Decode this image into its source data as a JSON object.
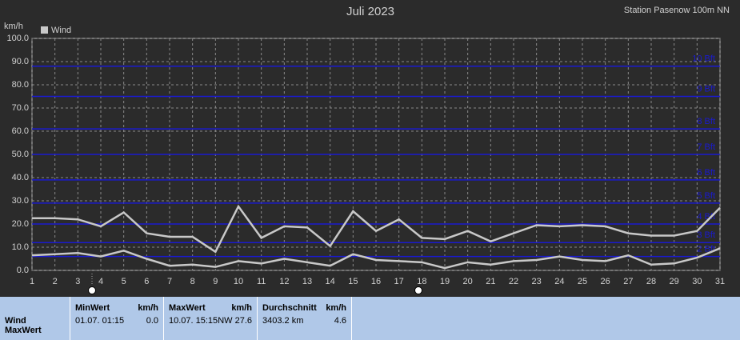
{
  "chart_data": {
    "type": "line",
    "title": "Juli 2023",
    "subtitle": "Station Pasenow 100m NN",
    "y_label": "km/h",
    "x": [
      1,
      2,
      3,
      4,
      5,
      6,
      7,
      8,
      9,
      10,
      11,
      12,
      13,
      14,
      15,
      16,
      17,
      18,
      19,
      20,
      21,
      22,
      23,
      24,
      25,
      26,
      27,
      28,
      29,
      30,
      31
    ],
    "series": [
      {
        "color": "#c8c8c8",
        "values": [
          22.5,
          22.5,
          22,
          19,
          25,
          16,
          14.5,
          14.5,
          8,
          27.6,
          14,
          19,
          18.5,
          10.5,
          25.5,
          17,
          22,
          14,
          13.5,
          17,
          12.5,
          16,
          19.5,
          19,
          19.5,
          19,
          16,
          15,
          15,
          17,
          27
        ]
      },
      {
        "name": "Wind",
        "color": "#c8c8c8",
        "values": [
          6.5,
          7,
          7.5,
          6,
          8.5,
          5,
          2,
          2.5,
          1.5,
          4,
          3,
          5,
          3.5,
          2,
          7,
          4.5,
          4,
          3.5,
          1,
          3.5,
          2.5,
          4,
          4.5,
          6,
          4.5,
          4,
          6.5,
          2.5,
          3,
          5.5,
          9.5
        ]
      }
    ],
    "xlim": [
      1,
      31
    ],
    "xticks": [
      1,
      2,
      3,
      4,
      5,
      6,
      7,
      8,
      9,
      10,
      11,
      12,
      13,
      14,
      15,
      16,
      17,
      18,
      19,
      20,
      21,
      22,
      23,
      24,
      25,
      26,
      27,
      28,
      29,
      30,
      31
    ],
    "ylim": [
      0,
      100
    ],
    "yticks": [
      {
        "value": 0,
        "label": "0.0"
      },
      {
        "value": 10,
        "label": "10.0"
      },
      {
        "value": 20,
        "label": "20.0"
      },
      {
        "value": 30,
        "label": "30.0"
      },
      {
        "value": 40,
        "label": "40.0"
      },
      {
        "value": 50,
        "label": "50.0"
      },
      {
        "value": 60,
        "label": "60.0"
      },
      {
        "value": 70,
        "label": "70.0"
      },
      {
        "value": 80,
        "label": "80.0"
      },
      {
        "value": 90,
        "label": "90.0"
      },
      {
        "value": 100,
        "label": "100.0"
      }
    ],
    "bft_lines": [
      {
        "value": 88,
        "label": "10 Bft"
      },
      {
        "value": 75,
        "label": "9 Bft"
      },
      {
        "value": 61,
        "label": "8 Bft"
      },
      {
        "value": 50,
        "label": "7 Bft"
      },
      {
        "value": 39,
        "label": "6 Bft"
      },
      {
        "value": 29,
        "label": "5 Bft"
      },
      {
        "value": 20,
        "label": "4 Bft"
      },
      {
        "value": 12,
        "label": "3 Bft"
      },
      {
        "value": 6,
        "label": "2 Bft"
      }
    ],
    "grid": true,
    "legend": "top-left"
  },
  "summary": {
    "row_labels": [
      "Wind",
      "MaxWert"
    ],
    "columns": [
      {
        "title": "MinWert",
        "unit": "km/h",
        "date": "01.07.  01:15",
        "value": "0.0"
      },
      {
        "title": "MaxWert",
        "unit": "km/h",
        "date": "10.07.  15:15",
        "value": "NW 27.6"
      },
      {
        "title": "Durchschnitt",
        "unit": "km/h",
        "date": "3403.2 km",
        "value": "4.6"
      }
    ]
  }
}
